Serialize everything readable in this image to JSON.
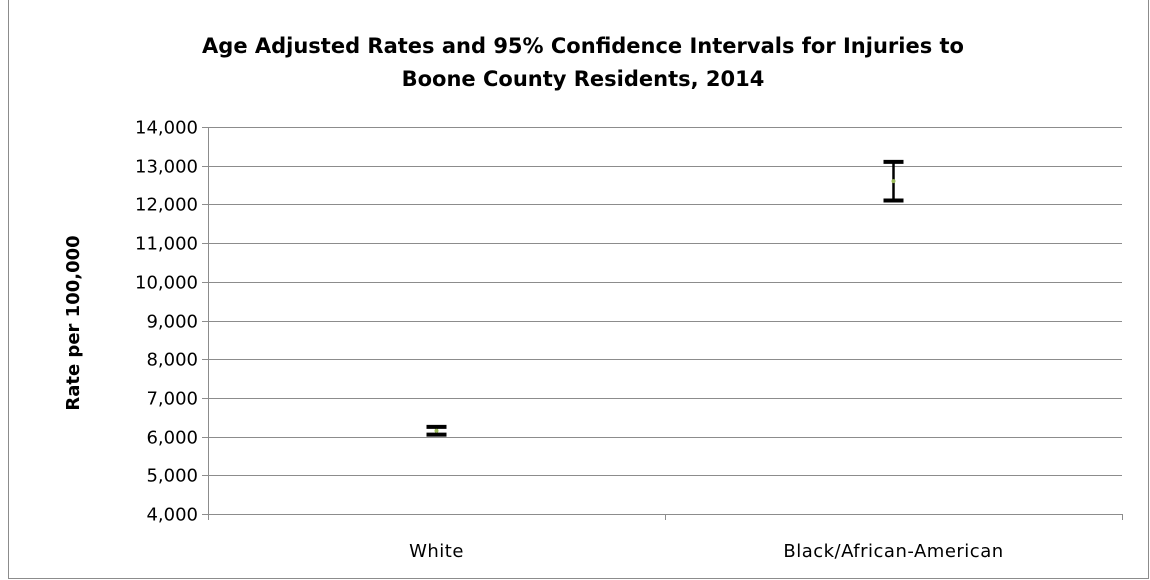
{
  "chart_data": {
    "type": "scatter",
    "title_lines": [
      "Age Adjusted Rates and 95% Confidence Intervals for Injuries to",
      "Boone County Residents, 2014"
    ],
    "ylabel": "Rate per 100,000",
    "xlabel": "",
    "ylim": [
      4000,
      14000
    ],
    "y_ticks": [
      4000,
      5000,
      6000,
      7000,
      8000,
      9000,
      10000,
      11000,
      12000,
      13000,
      14000
    ],
    "y_tick_labels": [
      "4,000",
      "5,000",
      "6,000",
      "7,000",
      "8,000",
      "9,000",
      "10,000",
      "11,000",
      "12,000",
      "13,000",
      "14,000"
    ],
    "categories": [
      "White",
      "Black/African-American"
    ],
    "values": [
      6150,
      12600
    ],
    "ci_lower": [
      6050,
      12100
    ],
    "ci_upper": [
      6250,
      13100
    ],
    "grid": true,
    "legend": "none",
    "point_color": "#9bbb59",
    "errorbar_color": "#000000",
    "gridline_color": "#8c8c8c"
  }
}
